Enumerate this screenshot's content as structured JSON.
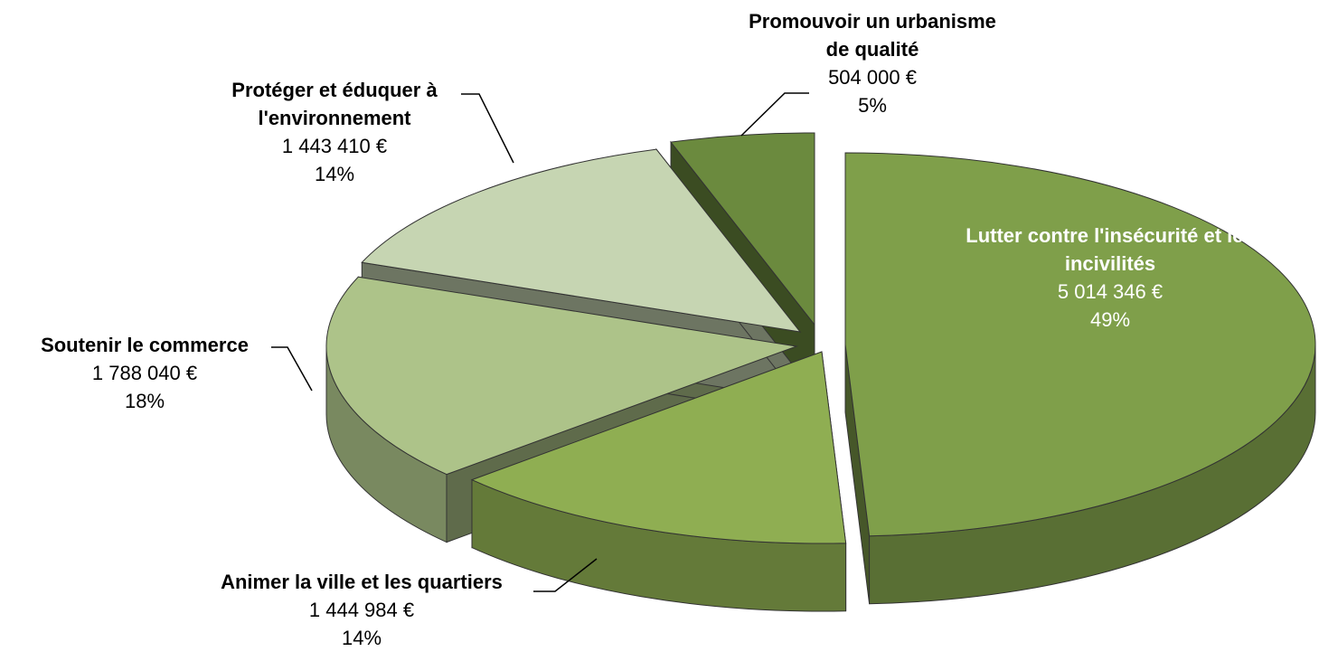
{
  "chart_data": {
    "type": "pie3d",
    "categories": [
      "Lutter contre l'insécurité et les incivilités",
      "Animer la ville et les quartiers",
      "Soutenir le commerce",
      "Protéger et éduquer à l'environnement",
      "Promouvoir un urbanisme de qualité"
    ],
    "values": [
      5014346,
      1444984,
      1788040,
      1443410,
      504000
    ],
    "value_labels": [
      "5 014 346 €",
      "1 444 984 €",
      "1 788 040 €",
      "1 443 410 €",
      "504 000 €"
    ],
    "percentages": [
      49,
      14,
      18,
      14,
      5
    ],
    "percentage_labels": [
      "49%",
      "14%",
      "18%",
      "14%",
      "5%"
    ],
    "colors": [
      "#7f9f4a",
      "#8fae52",
      "#adc389",
      "#c6d5b2",
      "#6b8a3e"
    ]
  }
}
